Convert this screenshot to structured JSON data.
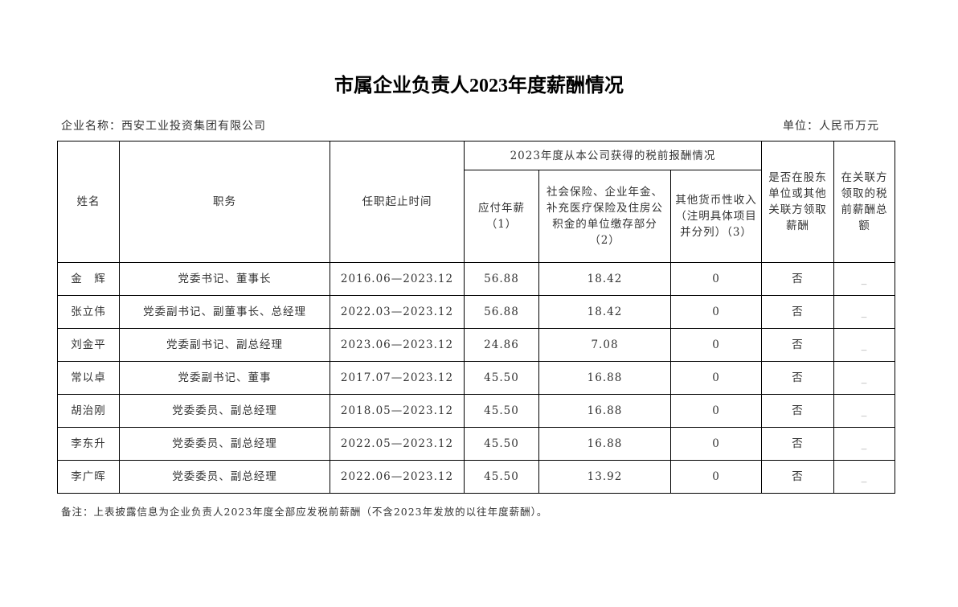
{
  "title": "市属企业负责人2023年度薪酬情况",
  "company": "企业名称：西安工业投资集团有限公司",
  "unit": "单位：人民币万元",
  "headers": {
    "name": "姓名",
    "position": "职务",
    "term": "任职起止时间",
    "group": "2023年度从本公司获得的税前报酬情况",
    "salary": "应付年薪（1）",
    "insurance": "社会保险、企业年金、补充医疗保险及住房公积金的单位缴存部分（2）",
    "other": "其他货币性收入（注明具体项目并分列）（3）",
    "shareholder": "是否在股东单位或其他关联方领取薪酬",
    "related": "在关联方领取的税前薪酬总额"
  },
  "rows": [
    {
      "name": "金　辉",
      "position": "党委书记、董事长",
      "term": "2016.06—2023.12",
      "salary": "56.88",
      "insurance": "18.42",
      "other": "0",
      "shareholder": "否",
      "related": "_"
    },
    {
      "name": "张立伟",
      "position": "党委副书记、副董事长、总经理",
      "term": "2022.03—2023.12",
      "salary": "56.88",
      "insurance": "18.42",
      "other": "0",
      "shareholder": "否",
      "related": "_"
    },
    {
      "name": "刘金平",
      "position": "党委副书记、副总经理",
      "term": "2023.06—2023.12",
      "salary": "24.86",
      "insurance": "7.08",
      "other": "0",
      "shareholder": "否",
      "related": "_"
    },
    {
      "name": "常以卓",
      "position": "党委副书记、董事",
      "term": "2017.07—2023.12",
      "salary": "45.50",
      "insurance": "16.88",
      "other": "0",
      "shareholder": "否",
      "related": "_"
    },
    {
      "name": "胡治刚",
      "position": "党委委员、副总经理",
      "term": "2018.05—2023.12",
      "salary": "45.50",
      "insurance": "16.88",
      "other": "0",
      "shareholder": "否",
      "related": "_"
    },
    {
      "name": "李东升",
      "position": "党委委员、副总经理",
      "term": "2022.05—2023.12",
      "salary": "45.50",
      "insurance": "16.88",
      "other": "0",
      "shareholder": "否",
      "related": "_"
    },
    {
      "name": "李广晖",
      "position": "党委委员、副总经理",
      "term": "2022.06—2023.12",
      "salary": "45.50",
      "insurance": "13.92",
      "other": "0",
      "shareholder": "否",
      "related": "_"
    }
  ],
  "note": "备注：上表披露信息为企业负责人2023年度全部应发税前薪酬（不含2023年发放的以往年度薪酬）。"
}
